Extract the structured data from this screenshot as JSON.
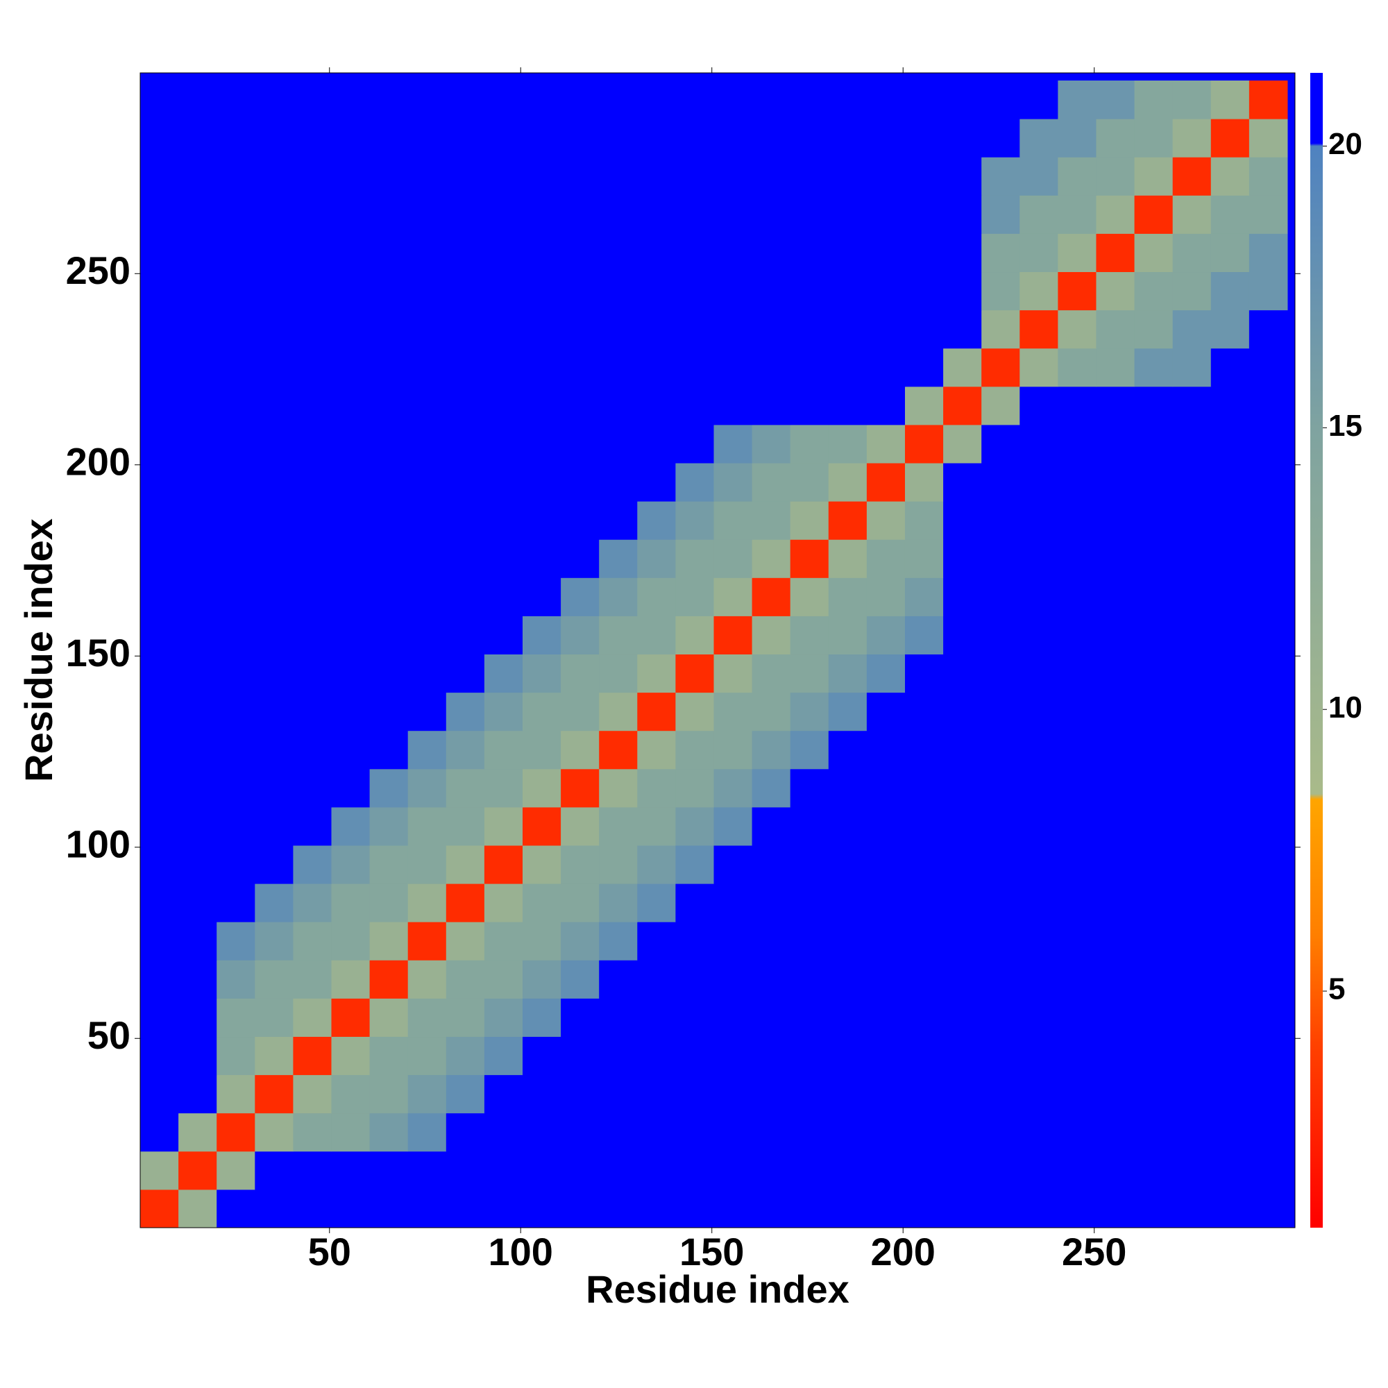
{
  "chart_data": {
    "type": "heatmap",
    "x_label": "Residue index",
    "y_label": "Residue index",
    "x": [
      5.5,
      15.5,
      25.5,
      35.5,
      45.5,
      55.5,
      65.5,
      75.5,
      85.5,
      95.5,
      105.5,
      115.5,
      125.5,
      135.5,
      145.5,
      155.5,
      165.5,
      175.5,
      185.5,
      195.5,
      205.5,
      215.5,
      225.5,
      235.5,
      245.5,
      255.5,
      265.5,
      275.5,
      285.5,
      295.5
    ],
    "y": [
      5.5,
      15.5,
      25.5,
      35.5,
      45.5,
      55.5,
      65.5,
      75.5,
      85.5,
      95.5,
      105.5,
      115.5,
      125.5,
      135.5,
      145.5,
      155.5,
      165.5,
      175.5,
      185.5,
      195.5,
      205.5,
      215.5,
      225.5,
      235.5,
      245.5,
      255.5,
      265.5,
      275.5,
      285.5,
      295.5
    ],
    "cell_size": 10,
    "xlim": [
      0.5,
      302.5
    ],
    "ylim": [
      0.5,
      302.5
    ],
    "xticks": [
      50,
      100,
      150,
      200,
      250
    ],
    "yticks": [
      50,
      100,
      150,
      200,
      250
    ],
    "zlim": [
      0.8,
      21.3
    ],
    "zticks": [
      5,
      10,
      15,
      20
    ],
    "colorscale": [
      [
        0.8,
        "#ff0000"
      ],
      [
        4,
        "#ff4000"
      ],
      [
        6,
        "#ff7f00"
      ],
      [
        8.4,
        "#ffa500"
      ],
      [
        8.5,
        "#a9ba8a"
      ],
      [
        15,
        "#7fa3a0"
      ],
      [
        20,
        "#4f82c0"
      ],
      [
        20.05,
        "#0000ff"
      ],
      [
        21.3,
        "#0000ff"
      ]
    ],
    "z": [
      [
        3,
        11,
        21,
        21,
        21,
        21,
        21,
        21,
        21,
        21,
        21,
        21,
        21,
        21,
        21,
        21,
        21,
        21,
        21,
        21,
        21,
        21,
        21,
        21,
        21,
        21,
        21,
        21,
        21,
        21
      ],
      [
        11,
        3,
        11,
        21,
        21,
        21,
        21,
        21,
        21,
        21,
        21,
        21,
        21,
        21,
        21,
        21,
        21,
        21,
        21,
        21,
        21,
        21,
        21,
        21,
        21,
        21,
        21,
        21,
        21,
        21
      ],
      [
        21,
        11,
        3,
        11,
        14,
        14,
        16,
        18,
        21,
        21,
        21,
        21,
        21,
        21,
        21,
        21,
        21,
        21,
        21,
        21,
        21,
        21,
        21,
        21,
        21,
        21,
        21,
        21,
        21,
        21
      ],
      [
        21,
        21,
        11,
        3,
        11,
        14,
        14,
        16,
        18,
        21,
        21,
        21,
        21,
        21,
        21,
        21,
        21,
        21,
        21,
        21,
        21,
        21,
        21,
        21,
        21,
        21,
        21,
        21,
        21,
        21
      ],
      [
        21,
        21,
        14,
        11,
        3,
        11,
        14,
        14,
        16,
        18,
        21,
        21,
        21,
        21,
        21,
        21,
        21,
        21,
        21,
        21,
        21,
        21,
        21,
        21,
        21,
        21,
        21,
        21,
        21,
        21
      ],
      [
        21,
        21,
        14,
        14,
        11,
        3,
        11,
        14,
        14,
        16,
        18,
        21,
        21,
        21,
        21,
        21,
        21,
        21,
        21,
        21,
        21,
        21,
        21,
        21,
        21,
        21,
        21,
        21,
        21,
        21
      ],
      [
        21,
        21,
        16,
        14,
        14,
        11,
        3,
        11,
        14,
        14,
        16,
        18,
        21,
        21,
        21,
        21,
        21,
        21,
        21,
        21,
        21,
        21,
        21,
        21,
        21,
        21,
        21,
        21,
        21,
        21
      ],
      [
        21,
        21,
        18,
        16,
        14,
        14,
        11,
        3,
        11,
        14,
        14,
        16,
        18,
        21,
        21,
        21,
        21,
        21,
        21,
        21,
        21,
        21,
        21,
        21,
        21,
        21,
        21,
        21,
        21,
        21
      ],
      [
        21,
        21,
        21,
        18,
        16,
        14,
        14,
        11,
        3,
        11,
        14,
        14,
        16,
        18,
        21,
        21,
        21,
        21,
        21,
        21,
        21,
        21,
        21,
        21,
        21,
        21,
        21,
        21,
        21,
        21
      ],
      [
        21,
        21,
        21,
        21,
        18,
        16,
        14,
        14,
        11,
        3,
        11,
        14,
        14,
        16,
        18,
        21,
        21,
        21,
        21,
        21,
        21,
        21,
        21,
        21,
        21,
        21,
        21,
        21,
        21,
        21
      ],
      [
        21,
        21,
        21,
        21,
        21,
        18,
        16,
        14,
        14,
        11,
        3,
        11,
        14,
        14,
        16,
        18,
        21,
        21,
        21,
        21,
        21,
        21,
        21,
        21,
        21,
        21,
        21,
        21,
        21,
        21
      ],
      [
        21,
        21,
        21,
        21,
        21,
        21,
        18,
        16,
        14,
        14,
        11,
        3,
        11,
        14,
        14,
        16,
        18,
        21,
        21,
        21,
        21,
        21,
        21,
        21,
        21,
        21,
        21,
        21,
        21,
        21
      ],
      [
        21,
        21,
        21,
        21,
        21,
        21,
        21,
        18,
        16,
        14,
        14,
        11,
        3,
        11,
        14,
        14,
        16,
        18,
        21,
        21,
        21,
        21,
        21,
        21,
        21,
        21,
        21,
        21,
        21,
        21
      ],
      [
        21,
        21,
        21,
        21,
        21,
        21,
        21,
        21,
        18,
        16,
        14,
        14,
        11,
        3,
        11,
        14,
        14,
        16,
        18,
        21,
        21,
        21,
        21,
        21,
        21,
        21,
        21,
        21,
        21,
        21
      ],
      [
        21,
        21,
        21,
        21,
        21,
        21,
        21,
        21,
        21,
        18,
        16,
        14,
        14,
        11,
        3,
        11,
        14,
        14,
        16,
        18,
        21,
        21,
        21,
        21,
        21,
        21,
        21,
        21,
        21,
        21
      ],
      [
        21,
        21,
        21,
        21,
        21,
        21,
        21,
        21,
        21,
        21,
        18,
        16,
        14,
        14,
        11,
        3,
        11,
        14,
        14,
        16,
        18,
        21,
        21,
        21,
        21,
        21,
        21,
        21,
        21,
        21
      ],
      [
        21,
        21,
        21,
        21,
        21,
        21,
        21,
        21,
        21,
        21,
        21,
        18,
        16,
        14,
        14,
        11,
        3,
        11,
        14,
        14,
        16,
        21,
        21,
        21,
        21,
        21,
        21,
        21,
        21,
        21
      ],
      [
        21,
        21,
        21,
        21,
        21,
        21,
        21,
        21,
        21,
        21,
        21,
        21,
        18,
        16,
        14,
        14,
        11,
        3,
        11,
        14,
        14,
        21,
        21,
        21,
        21,
        21,
        21,
        21,
        21,
        21
      ],
      [
        21,
        21,
        21,
        21,
        21,
        21,
        21,
        21,
        21,
        21,
        21,
        21,
        21,
        18,
        16,
        14,
        14,
        11,
        3,
        11,
        14,
        21,
        21,
        21,
        21,
        21,
        21,
        21,
        21,
        21
      ],
      [
        21,
        21,
        21,
        21,
        21,
        21,
        21,
        21,
        21,
        21,
        21,
        21,
        21,
        21,
        18,
        16,
        14,
        14,
        11,
        3,
        11,
        21,
        21,
        21,
        21,
        21,
        21,
        21,
        21,
        21
      ],
      [
        21,
        21,
        21,
        21,
        21,
        21,
        21,
        21,
        21,
        21,
        21,
        21,
        21,
        21,
        21,
        18,
        16,
        14,
        14,
        11,
        3,
        11,
        21,
        21,
        21,
        21,
        21,
        21,
        21,
        21
      ],
      [
        21,
        21,
        21,
        21,
        21,
        21,
        21,
        21,
        21,
        21,
        21,
        21,
        21,
        21,
        21,
        21,
        21,
        21,
        21,
        21,
        11,
        3,
        11,
        21,
        21,
        21,
        21,
        21,
        21,
        21
      ],
      [
        21,
        21,
        21,
        21,
        21,
        21,
        21,
        21,
        21,
        21,
        21,
        21,
        21,
        21,
        21,
        21,
        21,
        21,
        21,
        21,
        21,
        11,
        3,
        11,
        14,
        14,
        17,
        17,
        21,
        21
      ],
      [
        21,
        21,
        21,
        21,
        21,
        21,
        21,
        21,
        21,
        21,
        21,
        21,
        21,
        21,
        21,
        21,
        21,
        21,
        21,
        21,
        21,
        21,
        11,
        3,
        11,
        14,
        14,
        17,
        17,
        21
      ],
      [
        21,
        21,
        21,
        21,
        21,
        21,
        21,
        21,
        21,
        21,
        21,
        21,
        21,
        21,
        21,
        21,
        21,
        21,
        21,
        21,
        21,
        21,
        14,
        11,
        3,
        11,
        14,
        14,
        17,
        17
      ],
      [
        21,
        21,
        21,
        21,
        21,
        21,
        21,
        21,
        21,
        21,
        21,
        21,
        21,
        21,
        21,
        21,
        21,
        21,
        21,
        21,
        21,
        21,
        14,
        14,
        11,
        3,
        11,
        14,
        14,
        17
      ],
      [
        21,
        21,
        21,
        21,
        21,
        21,
        21,
        21,
        21,
        21,
        21,
        21,
        21,
        21,
        21,
        21,
        21,
        21,
        21,
        21,
        21,
        21,
        17,
        14,
        14,
        11,
        3,
        11,
        14,
        14
      ],
      [
        21,
        21,
        21,
        21,
        21,
        21,
        21,
        21,
        21,
        21,
        21,
        21,
        21,
        21,
        21,
        21,
        21,
        21,
        21,
        21,
        21,
        21,
        17,
        17,
        14,
        14,
        11,
        3,
        11,
        14
      ],
      [
        21,
        21,
        21,
        21,
        21,
        21,
        21,
        21,
        21,
        21,
        21,
        21,
        21,
        21,
        21,
        21,
        21,
        21,
        21,
        21,
        21,
        21,
        21,
        17,
        17,
        14,
        14,
        11,
        3,
        11
      ],
      [
        21,
        21,
        21,
        21,
        21,
        21,
        21,
        21,
        21,
        21,
        21,
        21,
        21,
        21,
        21,
        21,
        21,
        21,
        21,
        21,
        21,
        21,
        21,
        21,
        17,
        17,
        14,
        14,
        11,
        3
      ]
    ]
  }
}
